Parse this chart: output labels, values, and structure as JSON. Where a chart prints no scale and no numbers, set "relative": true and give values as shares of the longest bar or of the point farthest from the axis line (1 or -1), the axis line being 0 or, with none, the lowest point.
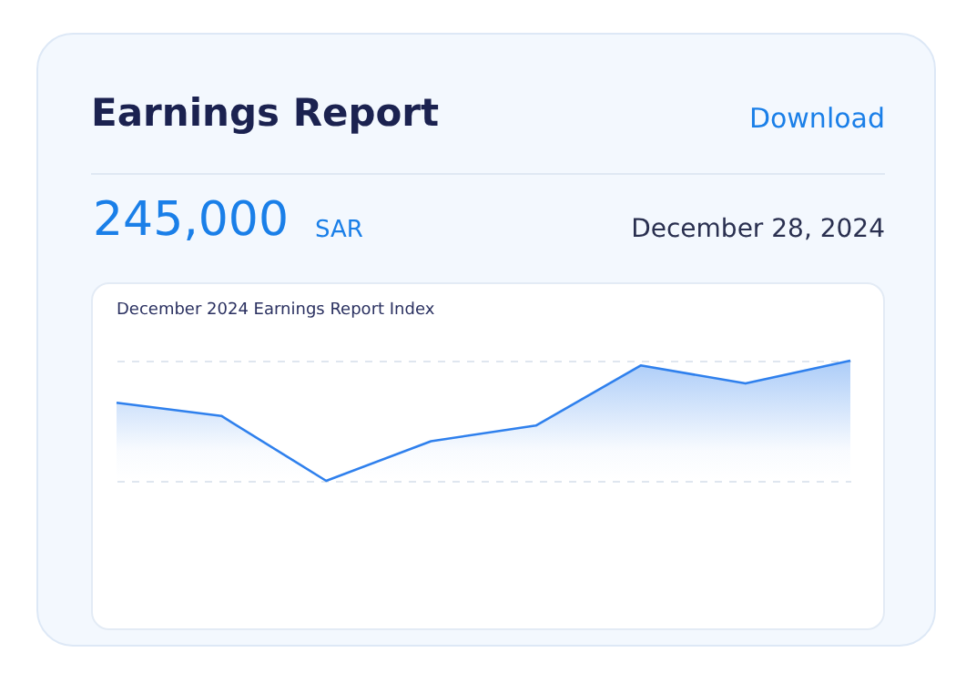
{
  "chart_data": {
    "type": "area",
    "title": "December 2024 Earnings Report Index",
    "relative": true,
    "grid": "y",
    "annotations": [
      "Earnings Report",
      "Download",
      "245,000",
      "SAR",
      "December 28, 2024"
    ],
    "categories": [
      null,
      null,
      null,
      null,
      null,
      null,
      null,
      null
    ],
    "series": [
      {
        "color": "#2f80ed",
        "values": [
          0.65,
          0.54,
          0,
          0.33,
          0.46,
          0.96,
          0.81,
          1
        ]
      }
    ]
  }
}
